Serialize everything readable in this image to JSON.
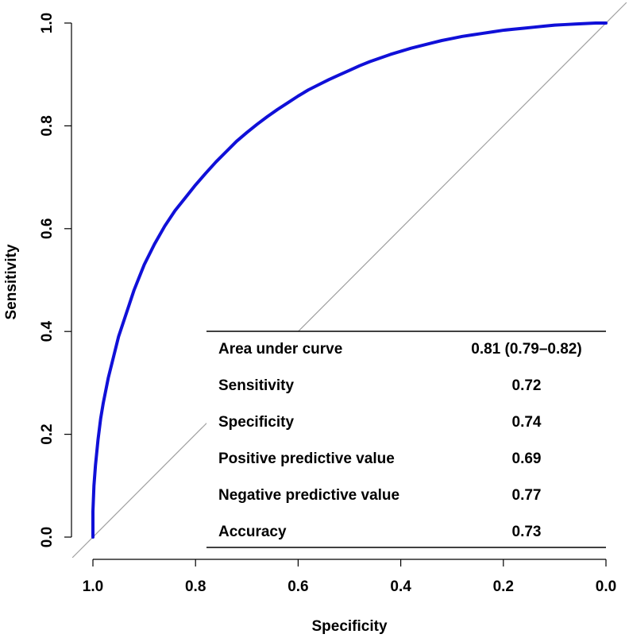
{
  "chart_data": {
    "type": "line",
    "title": "",
    "xlabel": "Specificity",
    "ylabel": "Sensitivity",
    "xlim": [
      1.0,
      0.0
    ],
    "ylim": [
      0.0,
      1.0
    ],
    "x_reversed": true,
    "x_ticks": [
      1.0,
      0.8,
      0.6,
      0.4,
      0.2,
      0.0
    ],
    "x_tick_labels": [
      "1.0",
      "0.8",
      "0.6",
      "0.4",
      "0.2",
      "0.0"
    ],
    "y_ticks": [
      0.0,
      0.2,
      0.4,
      0.6,
      0.8,
      1.0
    ],
    "y_tick_labels": [
      "0.0",
      "0.2",
      "0.4",
      "0.6",
      "0.8",
      "1.0"
    ],
    "grid": false,
    "colors": {
      "curve": "#1010d8",
      "reference_line": "#a0a0a0",
      "axis": "#000000"
    },
    "series": [
      {
        "specificity": [
          1.0,
          1.0,
          0.998,
          0.995,
          0.99,
          0.985,
          0.98,
          0.97,
          0.96,
          0.95,
          0.94,
          0.93,
          0.92,
          0.91,
          0.9,
          0.88,
          0.86,
          0.84,
          0.82,
          0.8,
          0.78,
          0.76,
          0.74,
          0.72,
          0.7,
          0.68,
          0.66,
          0.64,
          0.62,
          0.6,
          0.58,
          0.56,
          0.54,
          0.52,
          0.5,
          0.48,
          0.46,
          0.44,
          0.42,
          0.4,
          0.38,
          0.36,
          0.34,
          0.32,
          0.3,
          0.28,
          0.26,
          0.24,
          0.22,
          0.2,
          0.18,
          0.16,
          0.14,
          0.12,
          0.1,
          0.08,
          0.06,
          0.04,
          0.02,
          0.0
        ],
        "sensitivity": [
          0.0,
          0.05,
          0.1,
          0.14,
          0.19,
          0.23,
          0.26,
          0.31,
          0.35,
          0.39,
          0.42,
          0.45,
          0.48,
          0.505,
          0.53,
          0.57,
          0.605,
          0.635,
          0.66,
          0.685,
          0.708,
          0.73,
          0.75,
          0.77,
          0.787,
          0.803,
          0.818,
          0.832,
          0.845,
          0.858,
          0.87,
          0.88,
          0.89,
          0.899,
          0.908,
          0.917,
          0.925,
          0.932,
          0.939,
          0.945,
          0.951,
          0.956,
          0.961,
          0.966,
          0.97,
          0.974,
          0.977,
          0.98,
          0.983,
          0.986,
          0.988,
          0.99,
          0.992,
          0.994,
          0.996,
          0.997,
          0.998,
          0.999,
          1.0,
          1.0
        ]
      }
    ],
    "reference_line": {
      "from": [
        1.0,
        0.0
      ],
      "to": [
        0.0,
        1.0
      ]
    },
    "stats_table": {
      "position": "bottom-right",
      "rows": [
        {
          "label": "Area under curve",
          "value": "0.81 (0.79–0.82)"
        },
        {
          "label": "Sensitivity",
          "value": "0.72"
        },
        {
          "label": "Specificity",
          "value": "0.74"
        },
        {
          "label": "Positive predictive value",
          "value": "0.69"
        },
        {
          "label": "Negative predictive value",
          "value": "0.77"
        },
        {
          "label": "Accuracy",
          "value": "0.73"
        }
      ]
    }
  }
}
